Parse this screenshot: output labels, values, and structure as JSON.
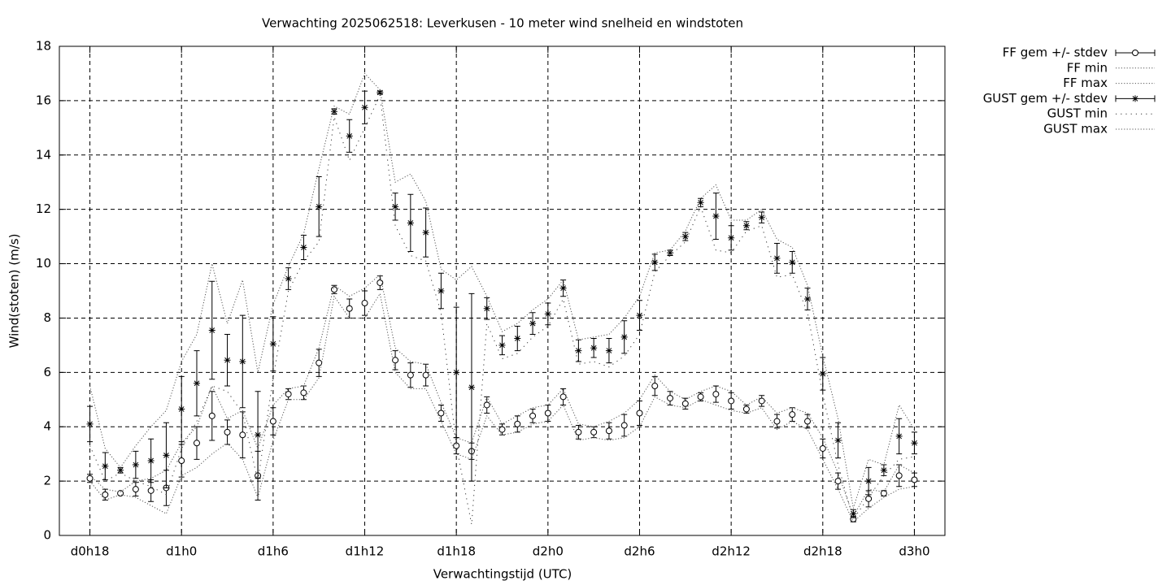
{
  "chart_data": {
    "type": "errorbar-line",
    "title": "Verwachting 2025062518: Leverkusen - 10 meter wind snelheid en windstoten",
    "x_label": "Verwachtingstijd (UTC)",
    "y_label": "Wind(stoten) (m/s)",
    "xlim": [
      -2,
      56
    ],
    "ylim": [
      0,
      18
    ],
    "xticks": [
      {
        "value": 0,
        "label": "d0h18"
      },
      {
        "value": 6,
        "label": "d1h0"
      },
      {
        "value": 12,
        "label": "d1h6"
      },
      {
        "value": 18,
        "label": "d1h12"
      },
      {
        "value": 24,
        "label": "d1h18"
      },
      {
        "value": 30,
        "label": "d2h0"
      },
      {
        "value": 36,
        "label": "d2h6"
      },
      {
        "value": 42,
        "label": "d2h12"
      },
      {
        "value": 48,
        "label": "d2h18"
      },
      {
        "value": 54,
        "label": "d3h0"
      }
    ],
    "yticks": [
      0,
      2,
      4,
      6,
      8,
      10,
      12,
      14,
      16,
      18
    ],
    "grid": true,
    "legend": "outside-right",
    "x": [
      0,
      1,
      2,
      3,
      4,
      5,
      6,
      7,
      8,
      9,
      10,
      11,
      12,
      13,
      14,
      15,
      16,
      17,
      18,
      19,
      20,
      21,
      22,
      23,
      24,
      25,
      26,
      27,
      28,
      29,
      30,
      31,
      32,
      33,
      34,
      35,
      36,
      37,
      38,
      39,
      40,
      41,
      42,
      43,
      44,
      45,
      46,
      47,
      48,
      49,
      50,
      51,
      52,
      53,
      54
    ],
    "series": [
      {
        "name": "FF gem +/- stdev",
        "color": "#000000",
        "style": "errorbars",
        "point": "circle",
        "values": [
          2.1,
          1.5,
          1.55,
          1.7,
          1.65,
          1.75,
          2.75,
          3.4,
          4.4,
          3.8,
          3.7,
          2.2,
          4.2,
          5.2,
          5.25,
          6.35,
          9.05,
          8.35,
          8.55,
          9.3,
          6.45,
          5.9,
          5.9,
          4.5,
          3.3,
          3.1,
          4.8,
          3.9,
          4.1,
          4.4,
          4.5,
          5.1,
          3.8,
          3.8,
          3.85,
          4.05,
          4.5,
          5.5,
          5.05,
          4.85,
          5.1,
          5.2,
          4.95,
          4.65,
          4.95,
          4.2,
          4.45,
          4.2,
          3.2,
          2.0,
          0.6,
          1.35,
          1.55,
          2.2,
          2.05
        ],
        "errors": [
          0.15,
          0.2,
          0.05,
          0.25,
          0.4,
          0.65,
          0.6,
          0.6,
          0.9,
          0.45,
          0.85,
          0.9,
          0.5,
          0.2,
          0.25,
          0.5,
          0.15,
          0.35,
          0.45,
          0.25,
          0.35,
          0.45,
          0.4,
          0.3,
          0.3,
          0.3,
          0.3,
          0.2,
          0.3,
          0.25,
          0.3,
          0.3,
          0.25,
          0.2,
          0.3,
          0.4,
          0.45,
          0.35,
          0.25,
          0.2,
          0.15,
          0.3,
          0.3,
          0.15,
          0.2,
          0.25,
          0.25,
          0.25,
          0.35,
          0.3,
          0.1,
          0.3,
          0.1,
          0.4,
          0.25
        ]
      },
      {
        "name": "FF min",
        "color": "#555555",
        "style": "dotted",
        "values": [
          2.0,
          1.3,
          1.5,
          1.4,
          1.1,
          0.8,
          2.2,
          2.5,
          3.0,
          3.4,
          2.8,
          1.4,
          3.5,
          5.0,
          5.0,
          5.8,
          8.8,
          8.0,
          8.0,
          8.9,
          6.0,
          5.4,
          5.4,
          4.2,
          3.0,
          2.8,
          4.4,
          3.7,
          3.8,
          4.1,
          4.2,
          4.8,
          3.5,
          3.6,
          3.5,
          3.6,
          4.0,
          5.1,
          4.8,
          4.7,
          5.0,
          4.8,
          4.6,
          4.5,
          4.7,
          3.9,
          4.2,
          3.9,
          2.8,
          1.7,
          0.5,
          1.0,
          1.4,
          1.7,
          1.8
        ]
      },
      {
        "name": "FF max",
        "color": "#555555",
        "style": "dotted",
        "values": [
          2.2,
          1.7,
          1.6,
          2.0,
          2.1,
          2.4,
          3.4,
          4.0,
          5.5,
          4.3,
          4.6,
          3.2,
          4.8,
          5.4,
          5.5,
          6.9,
          9.2,
          8.8,
          9.1,
          9.6,
          6.9,
          6.4,
          6.3,
          4.9,
          3.6,
          3.4,
          5.1,
          4.1,
          4.4,
          4.7,
          4.8,
          5.4,
          4.1,
          4.0,
          4.2,
          4.5,
          5.0,
          5.9,
          5.3,
          5.0,
          5.3,
          5.5,
          5.3,
          4.8,
          5.1,
          4.5,
          4.7,
          4.5,
          3.6,
          2.3,
          0.7,
          1.7,
          1.6,
          2.6,
          2.3
        ]
      },
      {
        "name": "GUST gem +/- stdev",
        "color": "#000000",
        "style": "errorbars",
        "point": "star",
        "values": [
          4.1,
          2.55,
          2.4,
          2.6,
          2.75,
          2.95,
          4.65,
          5.6,
          7.55,
          6.45,
          6.4,
          3.7,
          7.05,
          9.45,
          10.6,
          12.1,
          15.6,
          14.7,
          15.75,
          16.3,
          12.1,
          11.5,
          11.15,
          9.0,
          6.0,
          5.45,
          8.35,
          7.0,
          7.25,
          7.8,
          8.15,
          9.1,
          6.8,
          6.9,
          6.8,
          7.3,
          8.1,
          10.05,
          10.4,
          11.0,
          12.25,
          11.75,
          10.95,
          11.4,
          11.7,
          10.2,
          10.05,
          8.7,
          5.95,
          3.5,
          0.8,
          2.0,
          2.4,
          3.65,
          3.4
        ],
        "errors": [
          0.65,
          0.5,
          0.1,
          0.5,
          0.8,
          1.2,
          1.2,
          1.2,
          1.8,
          0.95,
          1.7,
          1.6,
          1.0,
          0.4,
          0.45,
          1.1,
          0.1,
          0.6,
          0.6,
          0.05,
          0.5,
          1.05,
          0.9,
          0.65,
          2.4,
          3.45,
          0.4,
          0.35,
          0.45,
          0.4,
          0.4,
          0.3,
          0.4,
          0.35,
          0.45,
          0.6,
          0.55,
          0.3,
          0.1,
          0.15,
          0.15,
          0.85,
          0.45,
          0.15,
          0.2,
          0.55,
          0.4,
          0.4,
          0.6,
          0.65,
          0.15,
          0.5,
          0.2,
          0.65,
          0.4
        ]
      },
      {
        "name": "GUST min",
        "color": "#333333",
        "style": "dotted-sparse",
        "values": [
          3.3,
          2.0,
          2.3,
          2.0,
          1.8,
          1.5,
          3.2,
          4.2,
          5.5,
          5.3,
          4.5,
          2.0,
          5.8,
          9.0,
          10.1,
          10.8,
          15.4,
          13.8,
          15.0,
          16.2,
          11.4,
          10.3,
          10.1,
          8.2,
          3.3,
          0.4,
          7.8,
          6.5,
          6.7,
          7.3,
          7.7,
          8.7,
          6.3,
          6.4,
          6.2,
          6.6,
          7.4,
          9.7,
          10.3,
          10.8,
          12.1,
          10.5,
          10.4,
          11.2,
          11.4,
          9.5,
          9.6,
          8.2,
          5.2,
          2.6,
          0.6,
          1.4,
          2.2,
          2.8,
          2.9
        ]
      },
      {
        "name": "GUST max",
        "color": "#555555",
        "style": "dotted",
        "values": [
          5.5,
          3.2,
          2.5,
          3.3,
          4.0,
          4.6,
          6.4,
          7.4,
          10.0,
          7.8,
          9.4,
          6.0,
          8.5,
          9.9,
          11.1,
          13.5,
          15.8,
          15.5,
          17.0,
          16.4,
          13.0,
          13.3,
          12.3,
          9.8,
          9.4,
          9.9,
          8.8,
          7.5,
          7.8,
          8.3,
          8.7,
          9.4,
          7.2,
          7.3,
          7.4,
          8.0,
          8.8,
          10.4,
          10.5,
          11.2,
          12.4,
          12.9,
          11.6,
          11.6,
          12.0,
          10.9,
          10.6,
          9.2,
          6.6,
          4.3,
          1.0,
          2.8,
          2.6,
          4.8,
          3.9
        ]
      }
    ]
  }
}
